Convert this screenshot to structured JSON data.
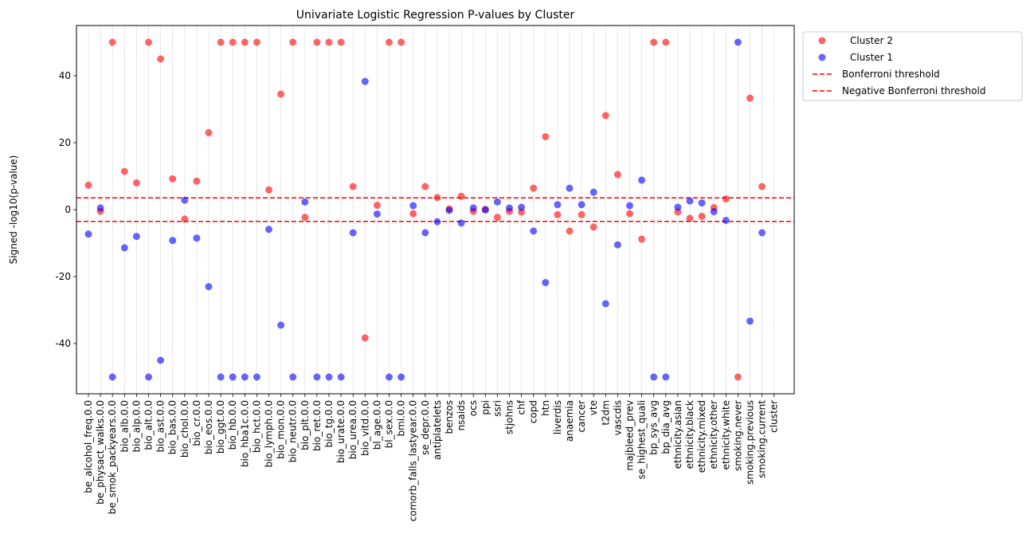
{
  "chart_data": {
    "type": "scatter",
    "title": "Univariate Logistic Regression P-values by Cluster",
    "xlabel": "",
    "ylabel": "Signed -log10(p-value)",
    "ylim": [
      -55,
      55
    ],
    "yticks": [
      -40,
      -20,
      0,
      20,
      40
    ],
    "grid": "vertical",
    "legend_position": "outside-top-right",
    "categories": [
      "be_alcohol_freq.0.0",
      "be_physact_walks.0.0",
      "be_smok_packyears.0.0",
      "bio_alb.0.0",
      "bio_alp.0.0",
      "bio_alt.0.0",
      "bio_ast.0.0",
      "bio_bas.0.0",
      "bio_chol.0.0",
      "bio_cr.0.0",
      "bio_eos.0.0",
      "bio_ggt.0.0",
      "bio_hb.0.0",
      "bio_hba1c.0.0",
      "bio_hct.0.0",
      "bio_lymph.0.0",
      "bio_mon.0.0",
      "bio_neutr.0.0",
      "bio_plt.0.0",
      "bio_ret.0.0",
      "bio_tg.0.0",
      "bio_urate.0.0",
      "bio_urea.0.0",
      "bio_vitd.0.0",
      "bl_age.0.0",
      "bl_sex.0.0",
      "bmi.0.0",
      "comorb_falls_lastyear.0.0",
      "se_depr.0.0",
      "antiplatelets",
      "benzos",
      "nsaids",
      "ocs",
      "ppi",
      "ssri",
      "stjohns",
      "chf",
      "copd",
      "htn",
      "liverdis",
      "anaemia",
      "cancer",
      "vte",
      "t2dm",
      "vascdis",
      "majbleed_prev",
      "se_highest_quali",
      "bp_sys_avg",
      "bp_dia_avg",
      "ethnicity.asian",
      "ethnicity.black",
      "ethnicity.mixed",
      "ethnicity.other",
      "ethnicity.white",
      "smoking.never",
      "smoking.previous",
      "smoking.current",
      "cluster"
    ],
    "series": [
      {
        "name": "Cluster 2",
        "color": "#ff0000",
        "values": [
          7.3,
          -0.5,
          50,
          11.4,
          8.0,
          50,
          45,
          9.2,
          -2.8,
          8.5,
          23,
          50,
          50,
          50,
          50,
          5.9,
          34.5,
          50,
          -2.3,
          50,
          50,
          50,
          6.9,
          -38.3,
          1.3,
          50,
          50,
          -1.2,
          6.9,
          3.6,
          0.2,
          4.0,
          -0.5,
          0.1,
          -2.3,
          -0.5,
          -0.7,
          6.4,
          21.8,
          -1.5,
          -6.4,
          -1.5,
          -5.2,
          28.1,
          10.5,
          -1.2,
          -8.8,
          50,
          50,
          -0.7,
          -2.6,
          -2.0,
          0.6,
          3.2,
          -50,
          33.3,
          6.9,
          null
        ]
      },
      {
        "name": "Cluster 1",
        "color": "#0000ff",
        "values": [
          -7.3,
          0.5,
          -50,
          -11.4,
          -8.0,
          -50,
          -45,
          -9.2,
          2.8,
          -8.5,
          -23,
          -50,
          -50,
          -50,
          -50,
          -5.9,
          -34.5,
          -50,
          2.3,
          -50,
          -50,
          -50,
          -6.9,
          38.3,
          -1.3,
          -50,
          -50,
          1.2,
          -6.9,
          -3.6,
          -0.2,
          -4.0,
          0.5,
          -0.1,
          2.3,
          0.5,
          0.7,
          -6.4,
          -21.8,
          1.5,
          6.4,
          1.5,
          5.2,
          -28.1,
          -10.5,
          1.2,
          8.8,
          -50,
          -50,
          0.7,
          2.6,
          2.0,
          -0.6,
          -3.2,
          50,
          -33.3,
          -6.9,
          null
        ]
      }
    ],
    "thresholds": [
      {
        "name": "Bonferroni threshold",
        "value": 3.5,
        "color": "#ff0000"
      },
      {
        "name": "Negative Bonferroni threshold",
        "value": -3.5,
        "color": "#ff0000"
      }
    ]
  }
}
